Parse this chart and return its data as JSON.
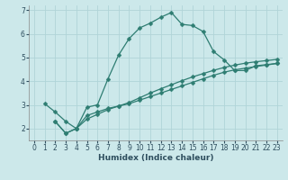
{
  "xlabel": "Humidex (Indice chaleur)",
  "bg_color": "#cce8ea",
  "line_color": "#2e7d72",
  "xlim": [
    -0.5,
    23.5
  ],
  "ylim": [
    1.5,
    7.2
  ],
  "yticks": [
    2,
    3,
    4,
    5,
    6,
    7
  ],
  "xticks": [
    0,
    1,
    2,
    3,
    4,
    5,
    6,
    7,
    8,
    9,
    10,
    11,
    12,
    13,
    14,
    15,
    16,
    17,
    18,
    19,
    20,
    21,
    22,
    23
  ],
  "line1_x": [
    1,
    2,
    3,
    4,
    5,
    6,
    7,
    8,
    9,
    10,
    11,
    12,
    13,
    14,
    15,
    16,
    17,
    18,
    19,
    20,
    21,
    22,
    23
  ],
  "line1_y": [
    3.05,
    2.7,
    2.3,
    2.0,
    2.9,
    3.0,
    4.1,
    5.1,
    5.8,
    6.25,
    6.45,
    6.7,
    6.9,
    6.4,
    6.35,
    6.1,
    5.25,
    4.9,
    4.45,
    4.45,
    4.65,
    4.7,
    4.75
  ],
  "line2_x": [
    2,
    3,
    4,
    5,
    6,
    7,
    8,
    9,
    10,
    11,
    12,
    13,
    14,
    15,
    16,
    17,
    18,
    19,
    20,
    21,
    22,
    23
  ],
  "line2_y": [
    2.3,
    1.8,
    2.0,
    2.55,
    2.7,
    2.85,
    2.95,
    3.05,
    3.2,
    3.35,
    3.5,
    3.65,
    3.8,
    3.95,
    4.1,
    4.25,
    4.38,
    4.48,
    4.55,
    4.62,
    4.68,
    4.75
  ],
  "line3_x": [
    2,
    3,
    4,
    5,
    6,
    7,
    8,
    9,
    10,
    11,
    12,
    13,
    14,
    15,
    16,
    17,
    18,
    19,
    20,
    21,
    22,
    23
  ],
  "line3_y": [
    2.3,
    1.8,
    2.0,
    2.4,
    2.6,
    2.8,
    2.95,
    3.1,
    3.3,
    3.5,
    3.68,
    3.85,
    4.02,
    4.18,
    4.32,
    4.46,
    4.58,
    4.68,
    4.76,
    4.82,
    4.87,
    4.92
  ],
  "marker_size": 2.5,
  "linewidth": 0.9,
  "tick_fontsize": 5.5,
  "label_fontsize": 6.5,
  "grid_color": "#b0d4d8"
}
